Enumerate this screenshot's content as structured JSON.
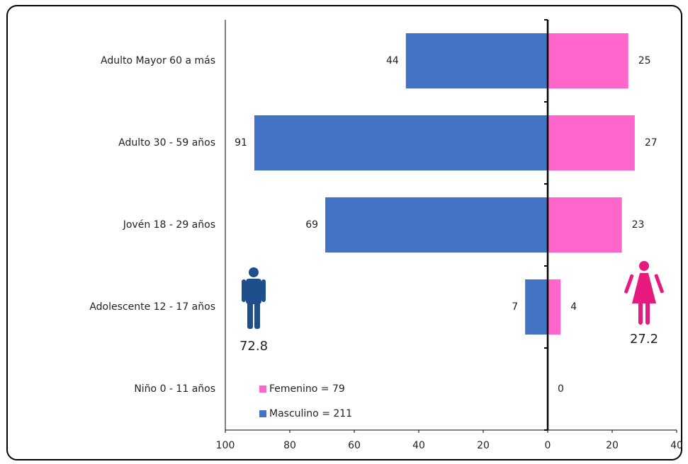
{
  "chart_data": {
    "type": "bar",
    "orientation": "horizontal",
    "categories": [
      "Adulto Mayor 60 a más",
      "Adulto 30 - 59 años",
      "Jovén 18 - 29 años",
      "Adolescente 12 - 17 años",
      "Niño 0 - 11 años"
    ],
    "series": [
      {
        "name": "Masculino = 211",
        "color": "#4472c4",
        "values": [
          -44,
          -91,
          -69,
          -7,
          0
        ],
        "value_labels": [
          "44",
          "91",
          "69",
          "7",
          null
        ]
      },
      {
        "name": "Femenino = 79",
        "color": "#ff66cc",
        "values": [
          25,
          27,
          23,
          4,
          0
        ],
        "value_labels": [
          "25",
          "27",
          "23",
          "4",
          "0"
        ]
      }
    ],
    "xlim": [
      -100,
      40
    ],
    "xticks": [
      {
        "value": -100,
        "label": "100"
      },
      {
        "value": -80,
        "label": "80"
      },
      {
        "value": -60,
        "label": "60"
      },
      {
        "value": -40,
        "label": "40"
      },
      {
        "value": -20,
        "label": "20"
      },
      0,
      20,
      40
    ],
    "annotations": [
      "72.8",
      "27.2"
    ],
    "grid": false
  }
}
